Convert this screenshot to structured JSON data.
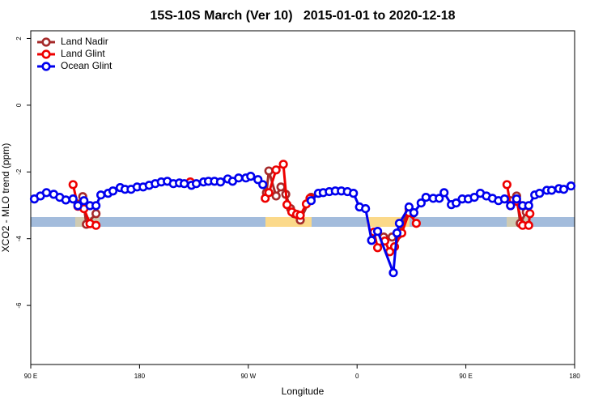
{
  "chart_data": {
    "type": "line",
    "title": "15S-10S March (Ver 10)   2015-01-01 to 2020-12-18",
    "x_label": "Longitude",
    "y_label": "XCO2 - MLO trend (ppm)",
    "xlim": [
      90,
      540
    ],
    "ylim": [
      -7.77,
      2.23
    ],
    "xticks": [
      {
        "value": 90,
        "label": "90 E"
      },
      {
        "value": 180,
        "label": "180"
      },
      {
        "value": 270,
        "label": "90 W"
      },
      {
        "value": 360,
        "label": "0"
      },
      {
        "value": 450,
        "label": "90 E"
      },
      {
        "value": 540,
        "label": "180"
      }
    ],
    "yticks": [
      2,
      0,
      -2,
      -4,
      -6
    ],
    "legend": "top-left",
    "series": [
      {
        "name": "Land Nadir",
        "color": "#a52a2a",
        "x": [
          129,
          133,
          136,
          144,
          null,
          285,
          287,
          293,
          297,
          301,
          305,
          308,
          313,
          322,
          null,
          382,
          389,
          394,
          403,
          406,
          null,
          487,
          492,
          495,
          500
        ],
        "values": [
          -2.96,
          -2.74,
          -3.57,
          -3.25,
          null,
          -2.62,
          -1.97,
          -2.72,
          -2.45,
          -2.67,
          -3.1,
          -3.25,
          -3.44,
          -2.76,
          null,
          -3.95,
          -3.95,
          -3.88,
          -3.1,
          -3.25,
          null,
          -2.86,
          -2.72,
          -3.54,
          -3.2
        ]
      },
      {
        "name": "Land Glint",
        "color": "#ee0000",
        "x": [
          125,
          129,
          134,
          139,
          144,
          null,
          222,
          null,
          284,
          287,
          293,
          299,
          302,
          306,
          310,
          313,
          318,
          321,
          null,
          374,
          377,
          383,
          387,
          391,
          397,
          403,
          409,
          null,
          484,
          487,
          492,
          497,
          502,
          503
        ],
        "values": [
          -2.38,
          -3.03,
          -3.1,
          -3.55,
          -3.6,
          null,
          -2.3,
          null,
          -2.79,
          -2.62,
          -1.94,
          -1.77,
          -2.98,
          -3.2,
          -3.27,
          -3.3,
          -2.96,
          -2.79,
          null,
          -3.8,
          -4.27,
          -4.07,
          -4.39,
          -4.24,
          -3.83,
          -3.22,
          -3.54,
          null,
          -2.38,
          -3.01,
          -2.88,
          -3.6,
          -3.6,
          -3.25
        ]
      },
      {
        "name": "Ocean Glint",
        "color": "#0000ee",
        "x": [
          93,
          98,
          103,
          109,
          114,
          119,
          125,
          129,
          134,
          139,
          144,
          148,
          154,
          158,
          164,
          168,
          173,
          178,
          183,
          188,
          193,
          198,
          203,
          208,
          213,
          217,
          223,
          227,
          233,
          237,
          242,
          247,
          253,
          257,
          262,
          268,
          272,
          278,
          282,
          null,
          322,
          328,
          332,
          337,
          342,
          347,
          352,
          357,
          362,
          367,
          372,
          377,
          390,
          393,
          395,
          403,
          407,
          413,
          417,
          423,
          428,
          432,
          438,
          442,
          447,
          452,
          457,
          462,
          467,
          472,
          477,
          482,
          487,
          492,
          497,
          502,
          507,
          511,
          517,
          521,
          527,
          531,
          537
        ],
        "values": [
          -2.81,
          -2.72,
          -2.62,
          -2.67,
          -2.76,
          -2.84,
          -2.81,
          -3.01,
          -2.86,
          -3.01,
          -3.01,
          -2.69,
          -2.64,
          -2.57,
          -2.47,
          -2.52,
          -2.52,
          -2.45,
          -2.45,
          -2.4,
          -2.35,
          -2.3,
          -2.28,
          -2.35,
          -2.33,
          -2.35,
          -2.4,
          -2.35,
          -2.3,
          -2.28,
          -2.28,
          -2.3,
          -2.21,
          -2.28,
          -2.18,
          -2.18,
          -2.13,
          -2.23,
          -2.38,
          null,
          -2.86,
          -2.64,
          -2.62,
          -2.59,
          -2.57,
          -2.57,
          -2.59,
          -2.64,
          -3.05,
          -3.1,
          -4.05,
          -3.78,
          -5.02,
          -3.83,
          -3.54,
          -3.05,
          -3.22,
          -2.93,
          -2.76,
          -2.79,
          -2.79,
          -2.62,
          -2.98,
          -2.93,
          -2.81,
          -2.81,
          -2.76,
          -2.64,
          -2.72,
          -2.79,
          -2.86,
          -2.81,
          -3.01,
          -2.81,
          -3.01,
          -3.01,
          -2.69,
          -2.64,
          -2.55,
          -2.55,
          -2.5,
          -2.52,
          -2.42
        ]
      }
    ]
  }
}
